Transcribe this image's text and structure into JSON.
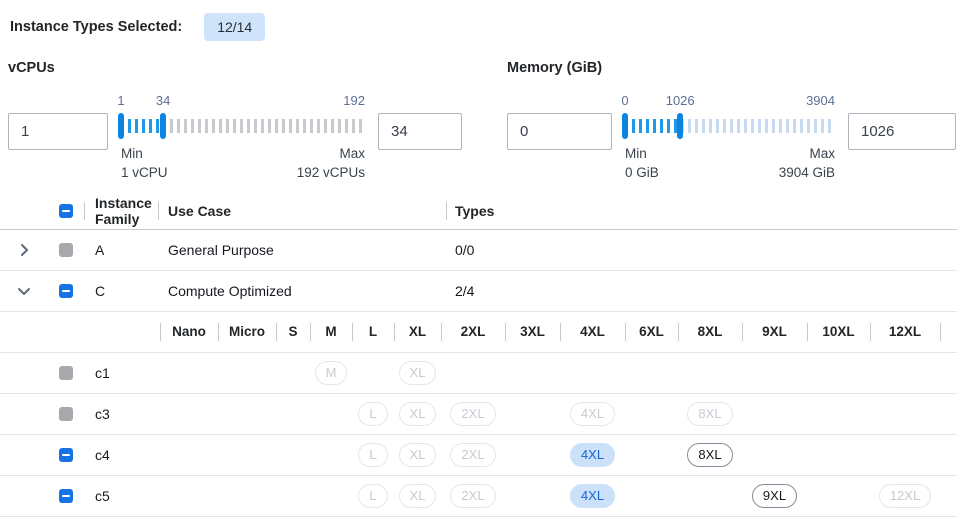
{
  "header": {
    "label": "Instance Types Selected:",
    "badge": "12/14"
  },
  "filters": {
    "vcpus": {
      "title": "vCPUs",
      "from_value": "1",
      "to_value": "34",
      "scale_labels": [
        "1",
        "34",
        "192"
      ],
      "scale_values": [
        1,
        34,
        192
      ],
      "range": [
        1,
        192
      ],
      "selected": [
        1,
        34
      ],
      "min_label": "Min",
      "min_detail": "1 vCPU",
      "max_label": "Max",
      "max_detail": "192 vCPUs"
    },
    "memory": {
      "title": "Memory (GiB)",
      "from_value": "0",
      "to_value": "1026",
      "scale_labels": [
        "0",
        "1026",
        "3904"
      ],
      "scale_values": [
        0,
        1026,
        3904
      ],
      "range": [
        0,
        3904
      ],
      "selected": [
        0,
        1026
      ],
      "min_label": "Min",
      "min_detail": "0 GiB",
      "max_label": "Max",
      "max_detail": "3904 GiB"
    }
  },
  "table": {
    "columns": {
      "family": "Instance Family",
      "use_case": "Use Case",
      "types": "Types"
    },
    "size_columns": [
      "Nano",
      "Micro",
      "S",
      "M",
      "L",
      "XL",
      "2XL",
      "3XL",
      "4XL",
      "6XL",
      "8XL",
      "9XL",
      "10XL",
      "12XL"
    ],
    "groups": [
      {
        "family": "A",
        "use_case": "General Purpose",
        "types": "0/0",
        "expanded": false,
        "checkbox": "disabled"
      },
      {
        "family": "C",
        "use_case": "Compute Optimized",
        "types": "2/4",
        "expanded": true,
        "checkbox": "indeterminate"
      }
    ],
    "families": [
      {
        "name": "c1",
        "checkbox": "disabled",
        "pills": [
          {
            "size": "M",
            "state": "disabled"
          },
          {
            "size": "XL",
            "state": "disabled"
          }
        ]
      },
      {
        "name": "c3",
        "checkbox": "disabled",
        "pills": [
          {
            "size": "L",
            "state": "disabled"
          },
          {
            "size": "XL",
            "state": "disabled"
          },
          {
            "size": "2XL",
            "state": "disabled"
          },
          {
            "size": "4XL",
            "state": "disabled"
          },
          {
            "size": "8XL",
            "state": "disabled"
          }
        ]
      },
      {
        "name": "c4",
        "checkbox": "indeterminate",
        "pills": [
          {
            "size": "L",
            "state": "disabled"
          },
          {
            "size": "XL",
            "state": "disabled"
          },
          {
            "size": "2XL",
            "state": "disabled"
          },
          {
            "size": "4XL",
            "state": "selected"
          },
          {
            "size": "8XL",
            "state": "enabled"
          }
        ]
      },
      {
        "name": "c5",
        "checkbox": "indeterminate",
        "pills": [
          {
            "size": "L",
            "state": "disabled"
          },
          {
            "size": "XL",
            "state": "disabled"
          },
          {
            "size": "2XL",
            "state": "disabled"
          },
          {
            "size": "4XL",
            "state": "selected"
          },
          {
            "size": "9XL",
            "state": "enabled"
          },
          {
            "size": "12XL",
            "state": "disabled"
          }
        ]
      }
    ]
  },
  "colors": {
    "accent_blue": "#1673e6",
    "slider_active_tick": "#1f9ae8",
    "slider_handle": "#0d84e0",
    "slider_inactive_vcpu": "#c9cacd",
    "slider_inactive_memory": "#c9d9ef",
    "selected_pill_bg": "#cbe1fa",
    "selected_pill_text": "#1766d8",
    "badge_bg": "#cfe4fa",
    "disabled_checkbox_gray": "#a9a9ad"
  }
}
